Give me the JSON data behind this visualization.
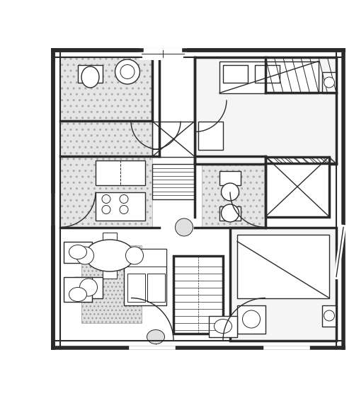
{
  "bg_color": "#ffffff",
  "wall_color": "#2a2a2a",
  "wall_lw": 2.5,
  "thin_lw": 1.0,
  "tile_color": "#d8d8d8",
  "figsize": [
    5.0,
    5.63
  ],
  "dpi": 100
}
